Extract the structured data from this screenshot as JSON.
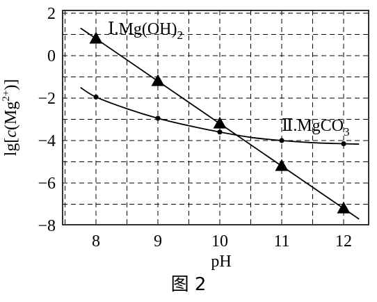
{
  "chart_data": {
    "type": "line",
    "title": "",
    "caption": "图 2",
    "xlabel": "pH",
    "ylabel": {
      "prefix": "lg[",
      "italic": "c",
      "mid": "(Mg",
      "sup": "2+",
      "suffix": ")]"
    },
    "xlim": [
      7.4,
      12.6
    ],
    "ylim": [
      -8,
      2
    ],
    "x_ticks": [
      8,
      9,
      10,
      11,
      12
    ],
    "y_ticks": [
      2,
      0,
      -2,
      -4,
      -6,
      -8
    ],
    "grid": true,
    "series": [
      {
        "name": "Ⅰ.Mg(OH)₂",
        "label_text": {
          "main": "Ⅰ.Mg(OH)",
          "sub": "2"
        },
        "marker": "triangle",
        "x": [
          8,
          9,
          10,
          11,
          12
        ],
        "values": [
          0.8,
          -1.2,
          -3.2,
          -5.2,
          -7.2
        ],
        "fit_line": {
          "x": [
            7.75,
            12.25
          ],
          "y": [
            1.3,
            -7.7
          ]
        }
      },
      {
        "name": "Ⅱ.MgCO₃",
        "label_text": {
          "main": "Ⅱ.MgCO",
          "sub": "3"
        },
        "marker": "dot",
        "x": [
          8,
          9,
          10,
          11,
          12
        ],
        "values": [
          -1.95,
          -2.95,
          -3.6,
          -4.0,
          -4.15
        ],
        "fit_curve": {
          "x": [
            7.75,
            8,
            8.5,
            9,
            9.5,
            10,
            10.5,
            11,
            11.5,
            12,
            12.25
          ],
          "y": [
            -1.5,
            -1.95,
            -2.5,
            -2.95,
            -3.3,
            -3.6,
            -3.85,
            -4.0,
            -4.1,
            -4.15,
            -4.17
          ]
        }
      }
    ]
  }
}
